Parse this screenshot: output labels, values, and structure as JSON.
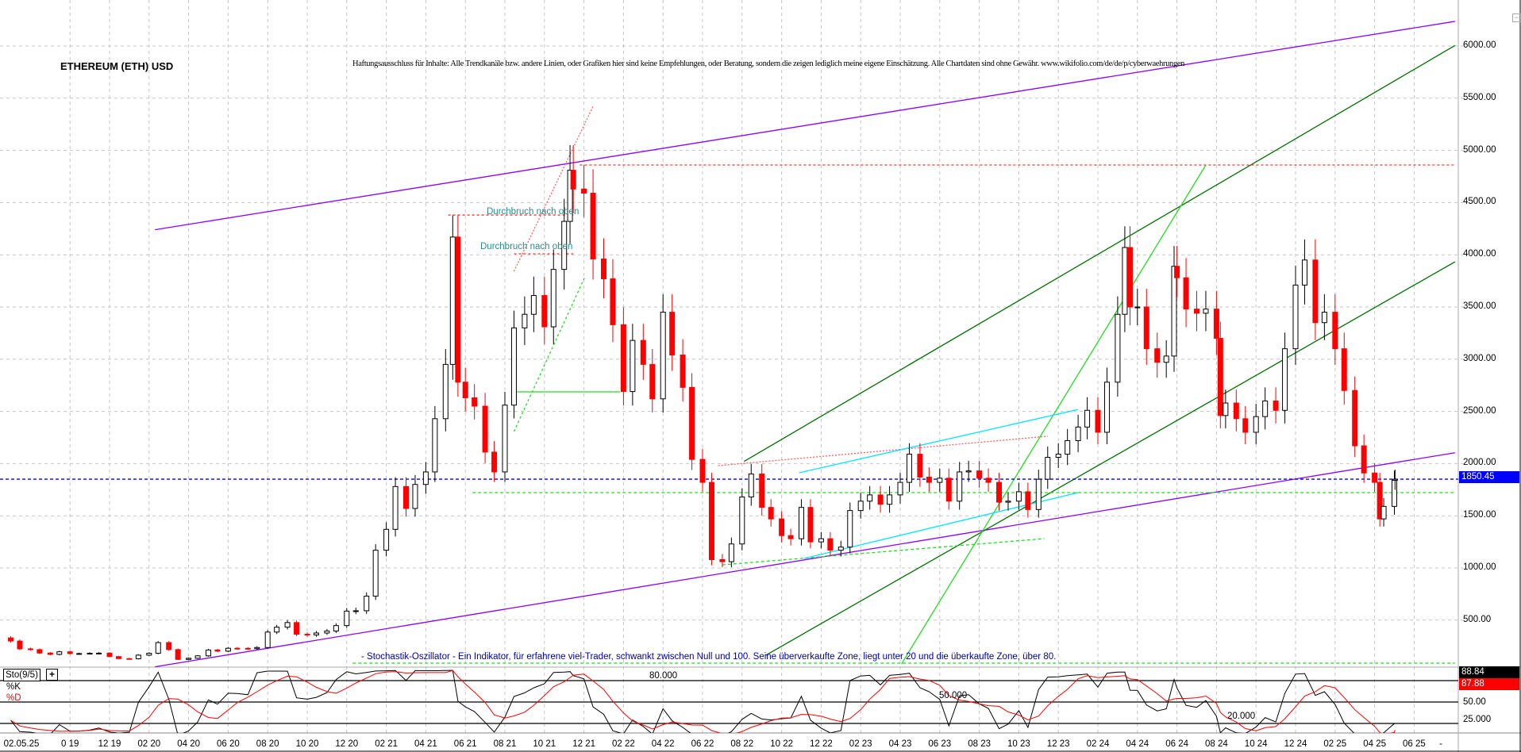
{
  "chart_data": {
    "type": "candlestick",
    "title": "ETHEREUM (ETH) USD",
    "disclaimer": "Haftungsausschluss für Inhalte: Alle Trendkanäle bzw. andere Linien, oder Grafiken hier sind keine Empfehlungen, oder Beratung, sondern die zeigen lediglich meine eigene Einschätzung. Alle Chartdaten sind ohne Gewähr.  www.wikifolio.com/de/de/p/cyberwaehrungen",
    "ylim": [
      0,
      6000
    ],
    "y_ticks": [
      "500.00",
      "1000.00",
      "1500.00",
      "2000.00",
      "2500.00",
      "3000.00",
      "3500.00",
      "4000.00",
      "4500.00",
      "5000.00",
      "5500.00",
      "6000.00"
    ],
    "current_price": 1850.45,
    "current_price_label": "1850.45",
    "grid": true,
    "colors": {
      "up": "#000000",
      "down": "#ff0000",
      "current_price_line": "#0000ff"
    },
    "cursor_date": "02.05.25",
    "x_ticks": [
      {
        "date": "2019-10",
        "label": "0 19"
      },
      {
        "date": "2019-12",
        "label": "12 19"
      },
      {
        "date": "2020-02",
        "label": "02 20"
      },
      {
        "date": "2020-04",
        "label": "04 20"
      },
      {
        "date": "2020-06",
        "label": "06 20"
      },
      {
        "date": "2020-08",
        "label": "08 20"
      },
      {
        "date": "2020-10",
        "label": "10 20"
      },
      {
        "date": "2020-12",
        "label": "12 20"
      },
      {
        "date": "2021-02",
        "label": "02 21"
      },
      {
        "date": "2021-04",
        "label": "04 21"
      },
      {
        "date": "2021-06",
        "label": "06 21"
      },
      {
        "date": "2021-08",
        "label": "08 21"
      },
      {
        "date": "2021-10",
        "label": "10 21"
      },
      {
        "date": "2021-12",
        "label": "12 21"
      },
      {
        "date": "2022-02",
        "label": "02 22"
      },
      {
        "date": "2022-04",
        "label": "04 22"
      },
      {
        "date": "2022-06",
        "label": "06 22"
      },
      {
        "date": "2022-08",
        "label": "08 22"
      },
      {
        "date": "2022-10",
        "label": "10 22"
      },
      {
        "date": "2022-12",
        "label": "12 22"
      },
      {
        "date": "2023-02",
        "label": "02 23"
      },
      {
        "date": "2023-04",
        "label": "04 23"
      },
      {
        "date": "2023-06",
        "label": "06 23"
      },
      {
        "date": "2023-08",
        "label": "08 23"
      },
      {
        "date": "2023-10",
        "label": "10 23"
      },
      {
        "date": "2023-12",
        "label": "12 23"
      },
      {
        "date": "2024-02",
        "label": "02 24"
      },
      {
        "date": "2024-04",
        "label": "04 24"
      },
      {
        "date": "2024-06",
        "label": "06 24"
      },
      {
        "date": "2024-08",
        "label": "08 24"
      },
      {
        "date": "2024-10",
        "label": "10 24"
      },
      {
        "date": "2024-12",
        "label": "12 24"
      },
      {
        "date": "2025-02",
        "label": "02 25"
      },
      {
        "date": "2025-04",
        "label": "04 25"
      },
      {
        "date": "2025-06",
        "label": "06 25"
      }
    ],
    "x_end_label": "-",
    "series": [
      [
        "2019-07-01",
        300
      ],
      [
        "2019-07-15",
        225
      ],
      [
        "2019-08-01",
        218
      ],
      [
        "2019-08-15",
        185
      ],
      [
        "2019-09-01",
        172
      ],
      [
        "2019-09-15",
        197
      ],
      [
        "2019-10-01",
        180
      ],
      [
        "2019-10-15",
        180
      ],
      [
        "2019-11-01",
        183
      ],
      [
        "2019-11-15",
        184
      ],
      [
        "2019-12-01",
        151
      ],
      [
        "2019-12-15",
        132
      ],
      [
        "2020-01-01",
        130
      ],
      [
        "2020-01-15",
        165
      ],
      [
        "2020-02-01",
        183
      ],
      [
        "2020-02-15",
        285
      ],
      [
        "2020-03-01",
        218
      ],
      [
        "2020-03-15",
        124
      ],
      [
        "2020-04-01",
        135
      ],
      [
        "2020-04-15",
        158
      ],
      [
        "2020-05-01",
        214
      ],
      [
        "2020-05-15",
        203
      ],
      [
        "2020-06-01",
        231
      ],
      [
        "2020-06-15",
        230
      ],
      [
        "2020-07-01",
        227
      ],
      [
        "2020-07-15",
        238
      ],
      [
        "2020-08-01",
        386
      ],
      [
        "2020-08-15",
        433
      ],
      [
        "2020-09-01",
        477
      ],
      [
        "2020-09-15",
        365
      ],
      [
        "2020-10-01",
        359
      ],
      [
        "2020-10-15",
        377
      ],
      [
        "2020-11-01",
        396
      ],
      [
        "2020-11-15",
        448
      ],
      [
        "2020-12-01",
        587
      ],
      [
        "2020-12-15",
        590
      ],
      [
        "2021-01-01",
        730
      ],
      [
        "2021-01-15",
        1170
      ],
      [
        "2021-02-01",
        1370
      ],
      [
        "2021-02-15",
        1780
      ],
      [
        "2021-03-01",
        1570
      ],
      [
        "2021-03-15",
        1800
      ],
      [
        "2021-04-01",
        1920
      ],
      [
        "2021-04-15",
        2430
      ],
      [
        "2021-05-01",
        2950
      ],
      [
        "2021-05-12",
        4170
      ],
      [
        "2021-05-20",
        2780
      ],
      [
        "2021-06-01",
        2630
      ],
      [
        "2021-06-15",
        2550
      ],
      [
        "2021-07-01",
        2110
      ],
      [
        "2021-07-15",
        1920
      ],
      [
        "2021-08-01",
        2560
      ],
      [
        "2021-08-15",
        3300
      ],
      [
        "2021-09-01",
        3430
      ],
      [
        "2021-09-15",
        3610
      ],
      [
        "2021-10-01",
        3310
      ],
      [
        "2021-10-15",
        3860
      ],
      [
        "2021-11-01",
        4320
      ],
      [
        "2021-11-10",
        4810
      ],
      [
        "2021-11-15",
        4630
      ],
      [
        "2021-12-01",
        4590
      ],
      [
        "2021-12-15",
        3960
      ],
      [
        "2022-01-01",
        3770
      ],
      [
        "2022-01-15",
        3330
      ],
      [
        "2022-02-01",
        2690
      ],
      [
        "2022-02-15",
        3180
      ],
      [
        "2022-03-01",
        2950
      ],
      [
        "2022-03-15",
        2620
      ],
      [
        "2022-04-01",
        3450
      ],
      [
        "2022-04-15",
        3040
      ],
      [
        "2022-05-01",
        2730
      ],
      [
        "2022-05-15",
        2040
      ],
      [
        "2022-06-01",
        1820
      ],
      [
        "2022-06-15",
        1080
      ],
      [
        "2022-07-01",
        1060
      ],
      [
        "2022-07-15",
        1230
      ],
      [
        "2022-08-01",
        1680
      ],
      [
        "2022-08-15",
        1900
      ],
      [
        "2022-09-01",
        1580
      ],
      [
        "2022-09-15",
        1470
      ],
      [
        "2022-10-01",
        1310
      ],
      [
        "2022-10-15",
        1280
      ],
      [
        "2022-11-01",
        1580
      ],
      [
        "2022-11-15",
        1250
      ],
      [
        "2022-12-01",
        1280
      ],
      [
        "2022-12-15",
        1170
      ],
      [
        "2023-01-01",
        1200
      ],
      [
        "2023-01-15",
        1550
      ],
      [
        "2023-02-01",
        1640
      ],
      [
        "2023-02-15",
        1700
      ],
      [
        "2023-03-01",
        1610
      ],
      [
        "2023-03-15",
        1700
      ],
      [
        "2023-04-01",
        1820
      ],
      [
        "2023-04-15",
        2090
      ],
      [
        "2023-05-01",
        1870
      ],
      [
        "2023-05-15",
        1820
      ],
      [
        "2023-06-01",
        1860
      ],
      [
        "2023-06-15",
        1640
      ],
      [
        "2023-07-01",
        1920
      ],
      [
        "2023-07-15",
        1930
      ],
      [
        "2023-08-01",
        1860
      ],
      [
        "2023-08-15",
        1820
      ],
      [
        "2023-09-01",
        1630
      ],
      [
        "2023-09-15",
        1640
      ],
      [
        "2023-10-01",
        1730
      ],
      [
        "2023-10-15",
        1560
      ],
      [
        "2023-11-01",
        1850
      ],
      [
        "2023-11-15",
        2060
      ],
      [
        "2023-12-01",
        2090
      ],
      [
        "2023-12-15",
        2220
      ],
      [
        "2024-01-01",
        2350
      ],
      [
        "2024-01-15",
        2510
      ],
      [
        "2024-02-01",
        2300
      ],
      [
        "2024-02-15",
        2780
      ],
      [
        "2024-03-01",
        3430
      ],
      [
        "2024-03-12",
        4070
      ],
      [
        "2024-03-20",
        3500
      ],
      [
        "2024-04-01",
        3500
      ],
      [
        "2024-04-15",
        3100
      ],
      [
        "2024-05-01",
        2970
      ],
      [
        "2024-05-15",
        3030
      ],
      [
        "2024-05-27",
        3890
      ],
      [
        "2024-06-01",
        3780
      ],
      [
        "2024-06-15",
        3480
      ],
      [
        "2024-07-01",
        3440
      ],
      [
        "2024-07-15",
        3480
      ],
      [
        "2024-08-01",
        3200
      ],
      [
        "2024-08-07",
        2460
      ],
      [
        "2024-08-15",
        2580
      ],
      [
        "2024-09-01",
        2430
      ],
      [
        "2024-09-15",
        2300
      ],
      [
        "2024-10-01",
        2450
      ],
      [
        "2024-10-15",
        2600
      ],
      [
        "2024-11-01",
        2510
      ],
      [
        "2024-11-15",
        3100
      ],
      [
        "2024-12-01",
        3710
      ],
      [
        "2024-12-15",
        3950
      ],
      [
        "2025-01-01",
        3350
      ],
      [
        "2025-01-15",
        3450
      ],
      [
        "2025-02-01",
        3100
      ],
      [
        "2025-02-15",
        2700
      ],
      [
        "2025-03-01",
        2170
      ],
      [
        "2025-03-15",
        1910
      ],
      [
        "2025-04-01",
        1820
      ],
      [
        "2025-04-09",
        1470
      ],
      [
        "2025-04-15",
        1590
      ],
      [
        "2025-05-01",
        1840
      ],
      [
        "2025-05-02",
        1850
      ]
    ],
    "trendlines": [
      {
        "color": "#8b00ff",
        "dash": "",
        "from": [
          "2020-02-10",
          4240
        ],
        "to": [
          "2025-08-03",
          6236
        ]
      },
      {
        "color": "#8b00ff",
        "dash": "",
        "from": [
          "2020-02-10",
          53
        ],
        "to": [
          "2025-08-03",
          2104
        ]
      },
      {
        "color": "#007000",
        "dash": "",
        "from": [
          "2022-08-04",
          2021
        ],
        "to": [
          "2025-08-03",
          6005
        ]
      },
      {
        "color": "#007000",
        "dash": "",
        "from": [
          "2022-09-07",
          164
        ],
        "to": [
          "2025-08-03",
          3933
        ]
      },
      {
        "color": "#22dd22",
        "dash": "",
        "from": [
          "2023-04-03",
          81
        ],
        "to": [
          "2024-07-15",
          4860
        ]
      },
      {
        "color": "#22dd22",
        "dash": "3,3",
        "from": [
          "2021-08-15",
          2307
        ],
        "to": [
          "2021-12-03",
          3796
        ]
      },
      {
        "color": "#22dd22",
        "dash": "",
        "from": [
          "2021-08-15",
          2687
        ],
        "to": [
          "2022-01-26",
          2687
        ]
      },
      {
        "color": "#22dd22",
        "dash": "4,3",
        "from": [
          "2021-06-12",
          1722
        ],
        "to": [
          "2025-08-03",
          1722
        ]
      },
      {
        "color": "#22dd22",
        "dash": "4,3",
        "from": [
          "2020-12-10",
          88
        ],
        "to": [
          "2025-08-03",
          88
        ]
      },
      {
        "color": "#22dd22",
        "dash": "4,3",
        "from": [
          "2022-07-01",
          1030
        ],
        "to": [
          "2023-11-10",
          1281
        ]
      },
      {
        "color": "#ff3030",
        "dash": "3,3",
        "from": [
          "2021-11-25",
          4860
        ],
        "to": [
          "2025-08-03",
          4860
        ]
      },
      {
        "color": "#ff3030",
        "dash": "3,3",
        "from": [
          "2021-05-05",
          4381
        ],
        "to": [
          "2021-11-15",
          4381
        ]
      },
      {
        "color": "#ff3030",
        "dash": "3,3",
        "from": [
          "2021-08-15",
          4009
        ],
        "to": [
          "2021-11-15",
          4009
        ]
      },
      {
        "color": "#ff6060",
        "dash": "2,2",
        "from": [
          "2021-08-15",
          3842
        ],
        "to": [
          "2021-12-15",
          5422
        ]
      },
      {
        "color": "#ff6060",
        "dash": "2,2",
        "from": [
          "2022-06-25",
          1980
        ],
        "to": [
          "2023-11-15",
          2262
        ]
      },
      {
        "color": "#00e5ff",
        "dash": "",
        "from": [
          "2022-10-28",
          1912
        ],
        "to": [
          "2024-01-01",
          2518
        ]
      },
      {
        "color": "#00e5ff",
        "dash": "",
        "from": [
          "2022-11-05",
          1091
        ],
        "to": [
          "2024-01-01",
          1722
        ]
      }
    ],
    "annotations": [
      {
        "text": "Durchbruch nach oben",
        "date": "2021-07-10",
        "price": 4520
      },
      {
        "text": "Durchbruch nach oben",
        "date": "2021-07-01",
        "price": 4180
      }
    ],
    "stochastic": {
      "label": "Sto(9/5)",
      "plus": "+",
      "k_label": "%K",
      "d_label": "%D",
      "k_period": 9,
      "d_period": 5,
      "k_value": "88.84",
      "d_value": "87.88",
      "levels": [
        80,
        50,
        20
      ],
      "level_labels": [
        "80.000",
        "50.000",
        "20.000"
      ],
      "axis_labels": [
        "50.00",
        "25.000"
      ],
      "ylim": [
        0,
        100
      ],
      "note": "- Stochastik-Oszillator - Ein Indikator, für erfahrene viel-Trader, schwankt zwischen Null und 100. Seine überverkaufte Zone, liegt unter 20 und die überkaufte Zone, über 80.",
      "colors": {
        "k": "#000000",
        "d": "#ff0000"
      }
    }
  },
  "ui": {
    "collapse_icon": "minus-box-icon",
    "collapse_glyph": "−"
  }
}
